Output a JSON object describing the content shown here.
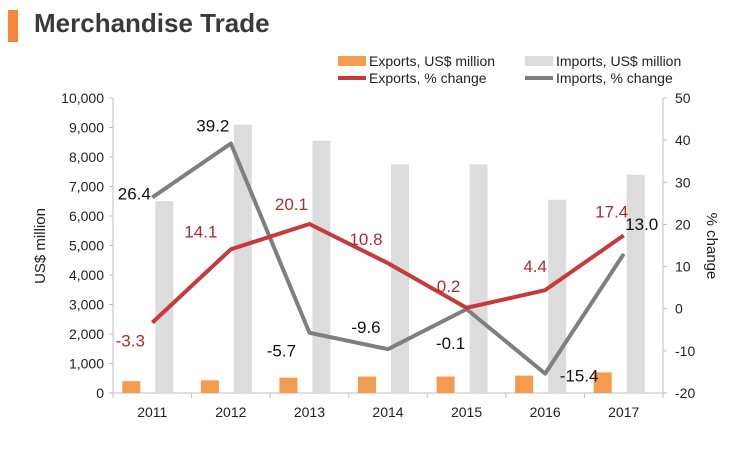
{
  "header": {
    "title": "Merchandise Trade"
  },
  "colors": {
    "exports_bar": "#f59b4f",
    "imports_bar": "#dcdcdc",
    "exports_line": "#c9393a",
    "imports_line": "#7f7f7f",
    "accent": "#f4873a"
  },
  "chart_data": {
    "type": "bar",
    "categories": [
      "2011",
      "2012",
      "2013",
      "2014",
      "2015",
      "2016",
      "2017"
    ],
    "series": [
      {
        "name": "Exports, US$ million",
        "kind": "bar",
        "axis": "left",
        "values": [
          400,
          430,
          520,
          560,
          560,
          590,
          700
        ]
      },
      {
        "name": "Imports, US$ million",
        "kind": "bar",
        "axis": "left",
        "values": [
          6500,
          9100,
          8550,
          7750,
          7750,
          6550,
          7400
        ]
      },
      {
        "name": "Exports, % change",
        "kind": "line",
        "axis": "right",
        "values": [
          -3.3,
          14.1,
          20.1,
          10.8,
          0.2,
          4.4,
          17.4
        ]
      },
      {
        "name": "Imports, % change",
        "kind": "line",
        "axis": "right",
        "values": [
          26.4,
          39.2,
          -5.7,
          -9.6,
          -0.1,
          -15.4,
          13.0
        ]
      }
    ],
    "exports_pct_labels": [
      "-3.3",
      "14.1",
      "20.1",
      "10.8",
      "0.2",
      "4.4",
      "17.4"
    ],
    "imports_pct_labels": [
      "26.4",
      "39.2",
      "-5.7",
      "-9.6",
      "-0.1",
      "-15.4",
      "13.0"
    ],
    "ylabel": "US$ million",
    "y2label": "% change",
    "ylim": [
      0,
      10000
    ],
    "y2lim": [
      -20,
      50
    ],
    "yticks": [
      "0",
      "1,000",
      "2,000",
      "3,000",
      "4,000",
      "5,000",
      "6,000",
      "7,000",
      "8,000",
      "9,000",
      "10,000"
    ],
    "y2ticks": [
      "-20",
      "-10",
      "0",
      "10",
      "20",
      "30",
      "40",
      "50"
    ],
    "legend_position": "top-right",
    "grid": false
  }
}
